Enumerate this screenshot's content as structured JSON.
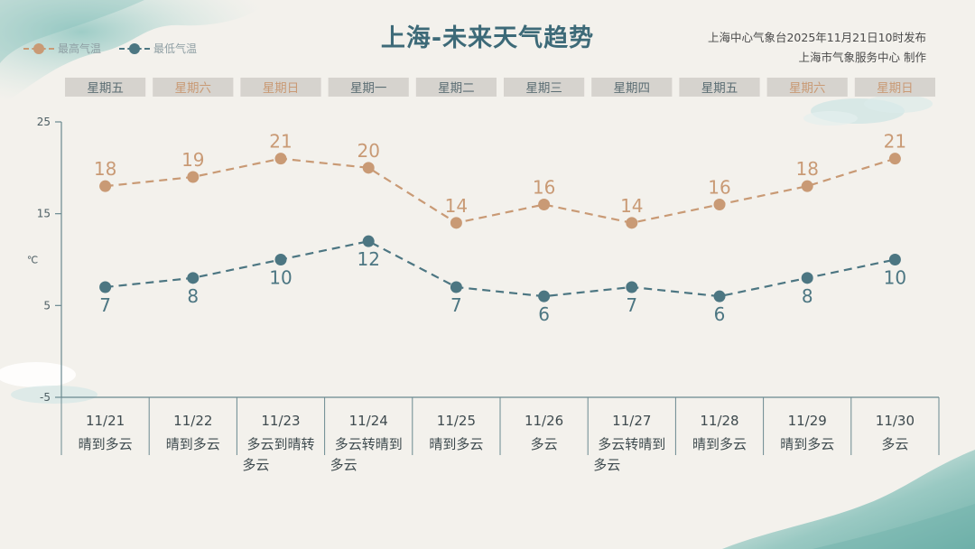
{
  "header": {
    "title": "上海-未来天气趋势",
    "source_line1": "上海中心气象台2025年11月21日10时发布",
    "source_line2": "上海市气象服务中心  制作"
  },
  "legend": {
    "high_label": "最高气温",
    "low_label": "最低气温"
  },
  "colors": {
    "high": "#c99a75",
    "low": "#4c7682",
    "weekday_box": "#d6d3ce",
    "weekday_weekday_text": "#5c6e74",
    "weekday_weekend_text": "#c99a75",
    "axis": "#6a8990"
  },
  "chart_data": {
    "type": "line",
    "unit": "℃",
    "y_ticks": [
      25,
      15,
      5,
      -5
    ],
    "ylim": [
      -5,
      25
    ],
    "days": [
      {
        "weekday": "星期五",
        "weekend": false,
        "date": "11/21",
        "weather": [
          "晴到多云"
        ]
      },
      {
        "weekday": "星期六",
        "weekend": true,
        "date": "11/22",
        "weather": [
          "晴到多云"
        ]
      },
      {
        "weekday": "星期日",
        "weekend": true,
        "date": "11/23",
        "weather": [
          "多云到晴转",
          "多云"
        ]
      },
      {
        "weekday": "星期一",
        "weekend": false,
        "date": "11/24",
        "weather": [
          "多云转晴到",
          "多云"
        ]
      },
      {
        "weekday": "星期二",
        "weekend": false,
        "date": "11/25",
        "weather": [
          "晴到多云"
        ]
      },
      {
        "weekday": "星期三",
        "weekend": false,
        "date": "11/26",
        "weather": [
          "多云"
        ]
      },
      {
        "weekday": "星期四",
        "weekend": false,
        "date": "11/27",
        "weather": [
          "多云转晴到",
          "多云"
        ]
      },
      {
        "weekday": "星期五",
        "weekend": false,
        "date": "11/28",
        "weather": [
          "晴到多云"
        ]
      },
      {
        "weekday": "星期六",
        "weekend": true,
        "date": "11/29",
        "weather": [
          "晴到多云"
        ]
      },
      {
        "weekday": "星期日",
        "weekend": true,
        "date": "11/30",
        "weather": [
          "多云"
        ]
      }
    ],
    "series": [
      {
        "name": "最高气温",
        "values": [
          18,
          19,
          21,
          20,
          14,
          16,
          14,
          16,
          18,
          21
        ]
      },
      {
        "name": "最低气温",
        "values": [
          7,
          8,
          10,
          12,
          7,
          6,
          7,
          6,
          8,
          10
        ]
      }
    ]
  }
}
